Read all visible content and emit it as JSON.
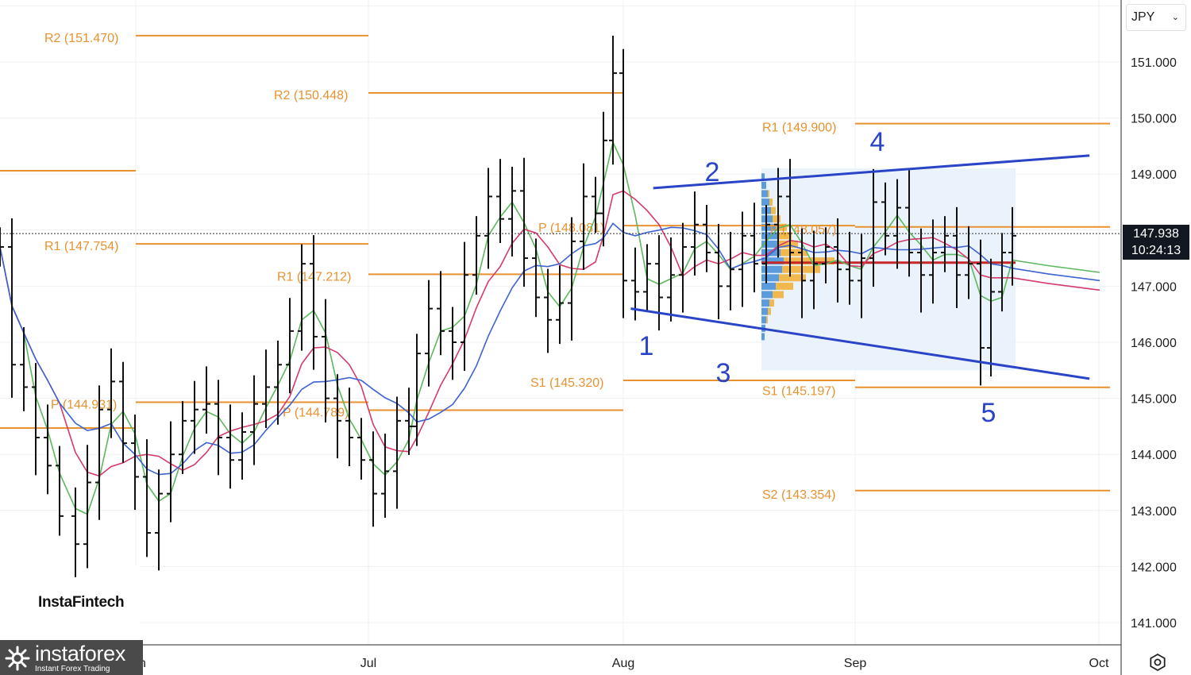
{
  "toolbar": {
    "currency_label": "JPY",
    "caret_icon": "chevron-down-icon"
  },
  "price_tag": {
    "price": "147.938",
    "countdown": "10:24:13"
  },
  "branding": {
    "watermark": "InstaFintech",
    "logo_main": "instaforex",
    "logo_sub": "Instant Forex Trading"
  },
  "settings_icon": "gear-icon",
  "colors": {
    "pivot": "#e8922f",
    "channel": "#2a44c7",
    "ma_fast": "#5cb85c",
    "ma_mid": "#d63a6a",
    "ma_slow": "#3d63d1",
    "bars": "#111111",
    "volume_profile_bg": "#e6f1fb",
    "poc_line": "#c62828"
  },
  "chart_data": {
    "type": "ohlc",
    "y_axis": {
      "range": [
        140.6,
        152.4
      ],
      "ticks": [
        "151.000",
        "150.000",
        "149.000",
        "148.000",
        "147.000",
        "146.000",
        "145.000",
        "144.000",
        "143.000",
        "142.000",
        "141.000"
      ]
    },
    "x_axis": {
      "ticks": [
        "Jun",
        "Jul",
        "Aug",
        "Sep",
        "Oct"
      ]
    },
    "current_price": 147.938,
    "pivot_levels": [
      {
        "label": "R2 (151.470)",
        "value": 151.47,
        "period": "Jun"
      },
      {
        "label": "R1 (147.754)",
        "value": 147.754,
        "period": "Jun"
      },
      {
        "label": "P (144.931)",
        "value": 144.931,
        "period": "Jun"
      },
      {
        "label": "",
        "value": 149.06,
        "period": "May"
      },
      {
        "label": "",
        "value": 144.47,
        "period": "May"
      },
      {
        "label": "R2 (150.448)",
        "value": 150.448,
        "period": "Jul"
      },
      {
        "label": "R1 (147.212)",
        "value": 147.212,
        "period": "Jul"
      },
      {
        "label": "P (144.789)",
        "value": 144.789,
        "period": "Jul"
      },
      {
        "label": "P (148.081)",
        "value": 148.081,
        "period": "Aug"
      },
      {
        "label": "S1 (145.320)",
        "value": 145.32,
        "period": "Aug"
      },
      {
        "label": "R1 (149.900)",
        "value": 149.9,
        "period": "Sep"
      },
      {
        "label": "P (148.057)",
        "value": 148.057,
        "period": "Sep"
      },
      {
        "label": "S1 (145.197)",
        "value": 145.197,
        "period": "Sep"
      },
      {
        "label": "S2 (143.354)",
        "value": 143.354,
        "period": "Sep"
      }
    ],
    "wave_labels": [
      "1",
      "2",
      "3",
      "4",
      "5"
    ],
    "channel_lines": [
      {
        "from": [
          "2024-08-02",
          146.6
        ],
        "to": [
          "2024-09-23",
          145.35
        ]
      },
      {
        "from": [
          "2024-08-05",
          148.75
        ],
        "to": [
          "2024-09-23",
          149.33
        ]
      }
    ],
    "point_of_control": 147.42
  }
}
